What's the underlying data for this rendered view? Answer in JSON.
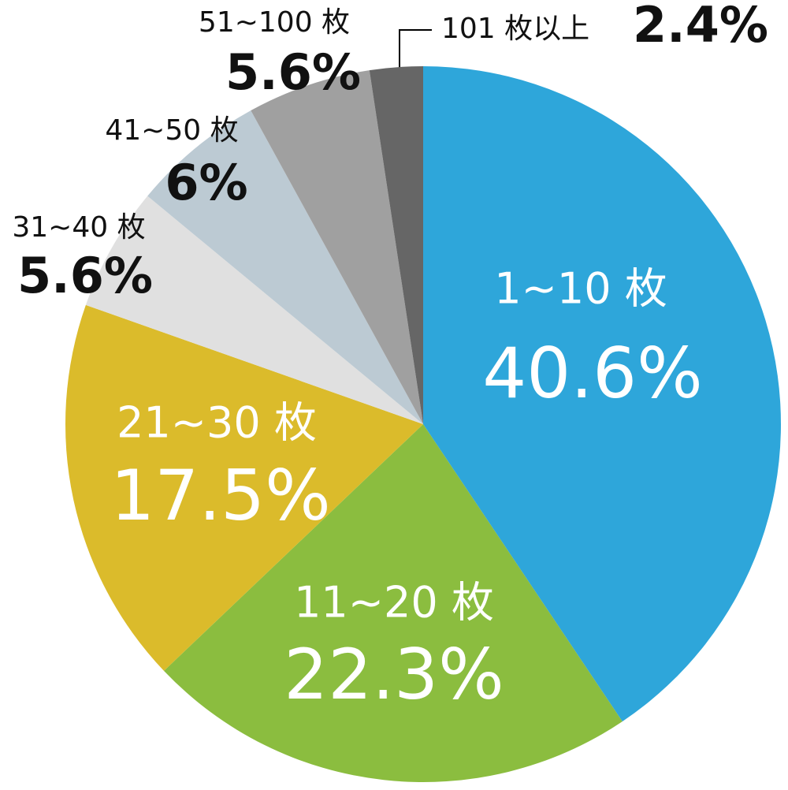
{
  "chart_data": {
    "type": "pie",
    "categories": [
      "1~10 枚",
      "11~20 枚",
      "21~30 枚",
      "31~40 枚",
      "41~50 枚",
      "51~100 枚",
      "101 枚以上"
    ],
    "values": [
      40.6,
      22.3,
      17.5,
      5.6,
      6,
      5.6,
      2.4
    ],
    "value_labels": [
      "40.6%",
      "22.3%",
      "17.5%",
      "5.6%",
      "6%",
      "5.6%",
      "2.4%"
    ],
    "colors": [
      "#2ea6da",
      "#8bbd3f",
      "#dbbb2b",
      "#e0e0e0",
      "#bccad3",
      "#a0a0a0",
      "#666666"
    ]
  }
}
